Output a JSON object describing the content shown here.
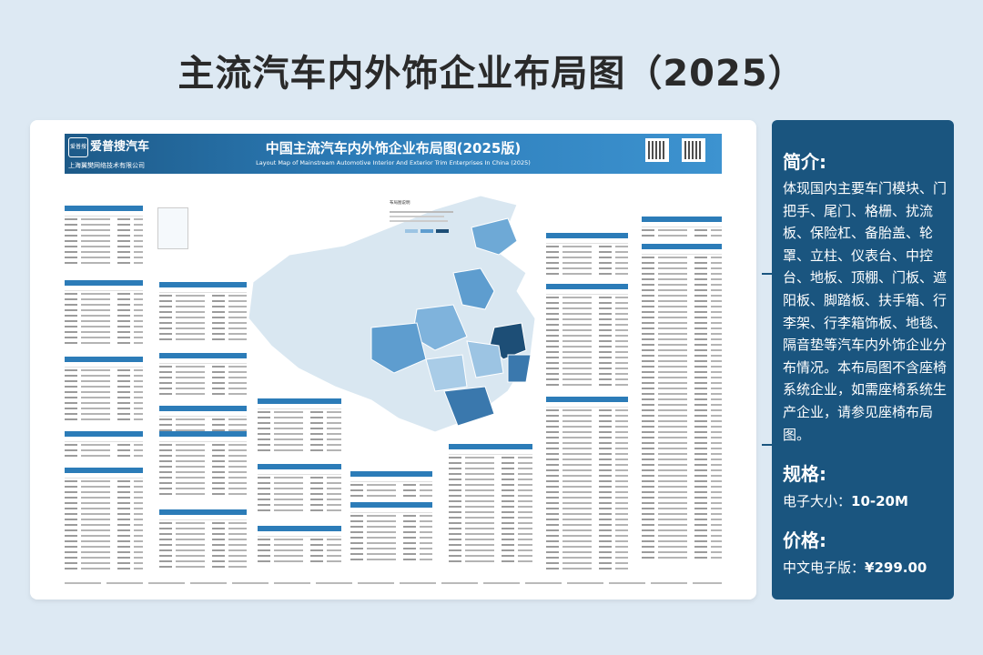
{
  "page_title": "主流汽车内外饰企业布局图（2025）",
  "poster": {
    "brand_name": "爱普搜汽车",
    "brand_icon_text": "爱普搜",
    "company": "上海翼樊网络技术有限公司",
    "title_cn": "中国主流汽车内外饰企业布局图(2025版)",
    "title_en": "Layout Map of Mainstream Automotive Interior And Exterior Trim Enterprises In China (2025)",
    "legend_title": "布局图说明"
  },
  "sidebar": {
    "intro_heading": "简介:",
    "intro_text": "体现国内主要车门模块、门把手、尾门、格栅、扰流板、保险杠、备胎盖、轮罩、立柱、仪表台、中控台、地板、顶棚、门板、遮阳板、脚踏板、扶手箱、行李架、行李箱饰板、地毯、隔音垫等汽车内外饰企业分布情况。本布局图不含座椅系统企业，如需座椅系统生产企业，请参见座椅布局图。",
    "spec_heading": "规格:",
    "spec_label": "电子大小：",
    "spec_value": "10-20M",
    "price_heading": "价格:",
    "price_label": "中文电子版：",
    "price_value": "¥299.00"
  },
  "colors": {
    "background": "#dde9f3",
    "sidebar": "#1a557f",
    "banner": "#2c7cb8",
    "map_light": "#d9e7f1",
    "map_mid": "#7fb3dc",
    "map_dark": "#1d4e76"
  }
}
